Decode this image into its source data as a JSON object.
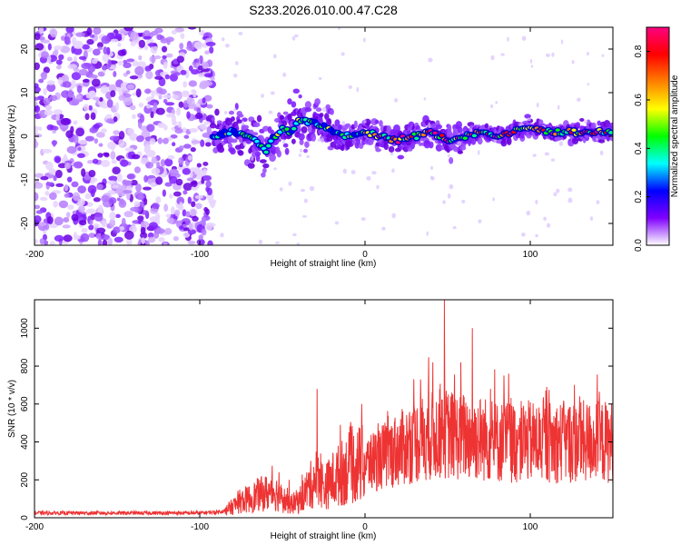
{
  "chart_data": [
    {
      "type": "heatmap",
      "title": "S233.2026.010.00.47.C28",
      "xlabel": "Height of straight line (km)",
      "ylabel": "Frequency (Hz)",
      "xlim": [
        -200,
        150
      ],
      "ylim": [
        -25,
        25
      ],
      "xticks": [
        -200,
        -100,
        0,
        100
      ],
      "xtick_labels": [
        "-200",
        "-100",
        "0",
        "100"
      ],
      "yticks": [
        -20,
        -10,
        0,
        10,
        20
      ],
      "ytick_labels": [
        "-20",
        "-10",
        "0",
        "10",
        "20"
      ],
      "ridge": {
        "description_values": "approximate centre frequency of the bright ridge vs height",
        "x": [
          -92,
          -80,
          -70,
          -60,
          -50,
          -45,
          -40,
          -30,
          -20,
          -10,
          0,
          10,
          20,
          30,
          40,
          50,
          60,
          70,
          80,
          90,
          100,
          110,
          120,
          130,
          140,
          150
        ],
        "y": [
          0,
          1,
          0,
          -3,
          2,
          1,
          4,
          3,
          1,
          0,
          1,
          0,
          -1,
          0,
          1,
          -1,
          0,
          1,
          0,
          1,
          2,
          1,
          1,
          1,
          1,
          1
        ]
      },
      "noise_region_x": [
        -200,
        -92
      ],
      "colorbar": {
        "label": "Normalized spectral amplitude",
        "range": [
          0,
          0.9
        ],
        "ticks": [
          0.0,
          0.2,
          0.4,
          0.6,
          0.8
        ],
        "tick_labels": [
          "0.0",
          "0.2",
          "0.4",
          "0.6",
          "0.8"
        ],
        "colors": [
          "#ffffff",
          "#7f00ff",
          "#0000ff",
          "#00ffff",
          "#00ff00",
          "#ffff00",
          "#ff8000",
          "#ff0000",
          "#ff0080"
        ]
      }
    },
    {
      "type": "line",
      "title": "",
      "xlabel": "Height of straight line (km)",
      "ylabel": "SNR (10 * v/v)",
      "xlim": [
        -200,
        150
      ],
      "ylim": [
        0,
        1150
      ],
      "xticks": [
        -200,
        -100,
        0,
        100
      ],
      "xtick_labels": [
        "-200",
        "-100",
        "0",
        "100"
      ],
      "yticks": [
        0,
        200,
        400,
        600,
        800,
        1000
      ],
      "ytick_labels": [
        "0",
        "200",
        "400",
        "600",
        "800",
        "1000"
      ],
      "series": [
        {
          "name": "SNR",
          "color": "#ee3333",
          "x": [
            -200,
            -190,
            -180,
            -170,
            -160,
            -150,
            -140,
            -130,
            -120,
            -110,
            -100,
            -90,
            -85,
            -80,
            -75,
            -70,
            -65,
            -60,
            -55,
            -50,
            -45,
            -40,
            -35,
            -30,
            -28,
            -25,
            -20,
            -15,
            -10,
            -5,
            0,
            5,
            10,
            15,
            20,
            25,
            30,
            35,
            40,
            45,
            48,
            50,
            55,
            60,
            65,
            70,
            75,
            80,
            85,
            90,
            95,
            100,
            105,
            110,
            115,
            120,
            125,
            130,
            135,
            140,
            145,
            150
          ],
          "mean": [
            25,
            25,
            25,
            25,
            25,
            25,
            25,
            25,
            25,
            25,
            25,
            30,
            35,
            60,
            90,
            100,
            120,
            130,
            140,
            100,
            70,
            90,
            150,
            200,
            250,
            150,
            200,
            230,
            260,
            280,
            280,
            300,
            320,
            340,
            360,
            380,
            400,
            420,
            430,
            440,
            450,
            440,
            430,
            430,
            420,
            420,
            410,
            400,
            400,
            400,
            400,
            400,
            400,
            400,
            400,
            400,
            400,
            400,
            400,
            400,
            400,
            400
          ],
          "peaks": [
            [
              -29,
              680
            ],
            [
              -46,
              200
            ],
            [
              -52,
              240
            ],
            [
              -15,
              490
            ],
            [
              48,
              1150
            ],
            [
              65,
              1000
            ],
            [
              41,
              820
            ],
            [
              58,
              820
            ],
            [
              87,
              760
            ],
            [
              76,
              680
            ],
            [
              110,
              690
            ],
            [
              130,
              640
            ],
            [
              95,
              580
            ],
            [
              -2,
              600
            ],
            [
              18,
              500
            ]
          ]
        }
      ]
    }
  ]
}
